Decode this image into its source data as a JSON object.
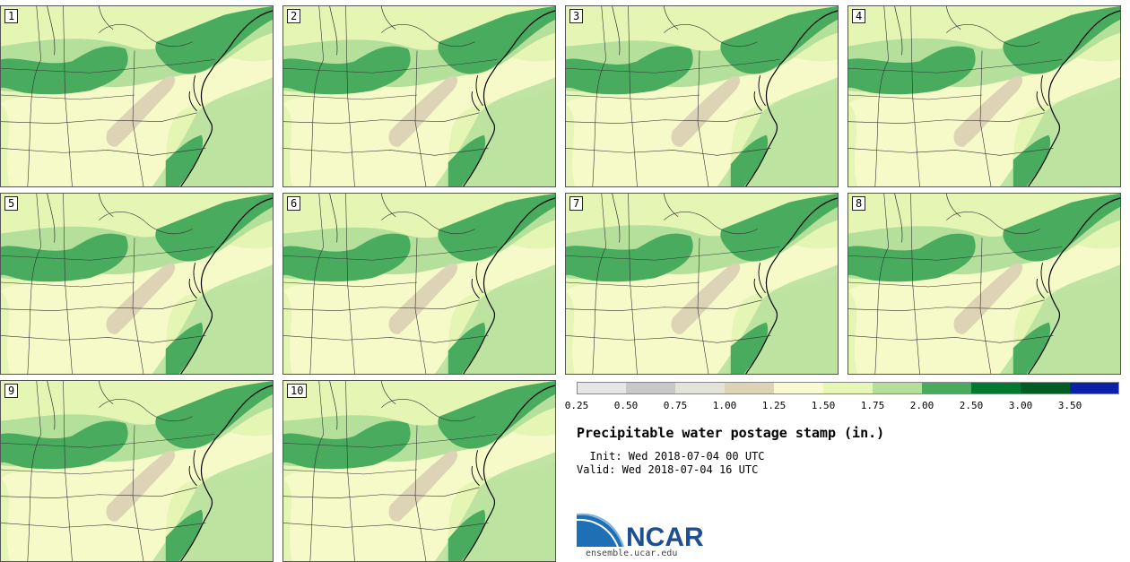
{
  "panels": [
    {
      "label": "1"
    },
    {
      "label": "2"
    },
    {
      "label": "3"
    },
    {
      "label": "4"
    },
    {
      "label": "5"
    },
    {
      "label": "6"
    },
    {
      "label": "7"
    },
    {
      "label": "8"
    },
    {
      "label": "9"
    },
    {
      "label": "10"
    }
  ],
  "legend": {
    "ticks": [
      "0.25",
      "0.50",
      "0.75",
      "1.00",
      "1.25",
      "1.50",
      "1.75",
      "2.00",
      "2.50",
      "3.00",
      "3.50"
    ],
    "colors": [
      "#e6e6e6",
      "#c8c8c8",
      "#e3e3da",
      "#ddd3b5",
      "#fafad2",
      "#e7f7b6",
      "#b4e09a",
      "#48ab5d",
      "#007a2f",
      "#005d24",
      "#0a21a8"
    ]
  },
  "title": "Precipitable water postage stamp (in.)",
  "init": "  Init: Wed 2018-07-04 00 UTC",
  "valid": "Valid: Wed 2018-07-04 16 UTC",
  "logo_text": "NCAR",
  "site": "ensemble.ucar.edu",
  "map_colors": {
    "base": "#f6f9c8",
    "light": "#e4f5b4",
    "mid": "#b5e09c",
    "dark": "#48ab5d",
    "tan": "#ddd3b5",
    "line": "#333333",
    "coast": "#000000"
  }
}
